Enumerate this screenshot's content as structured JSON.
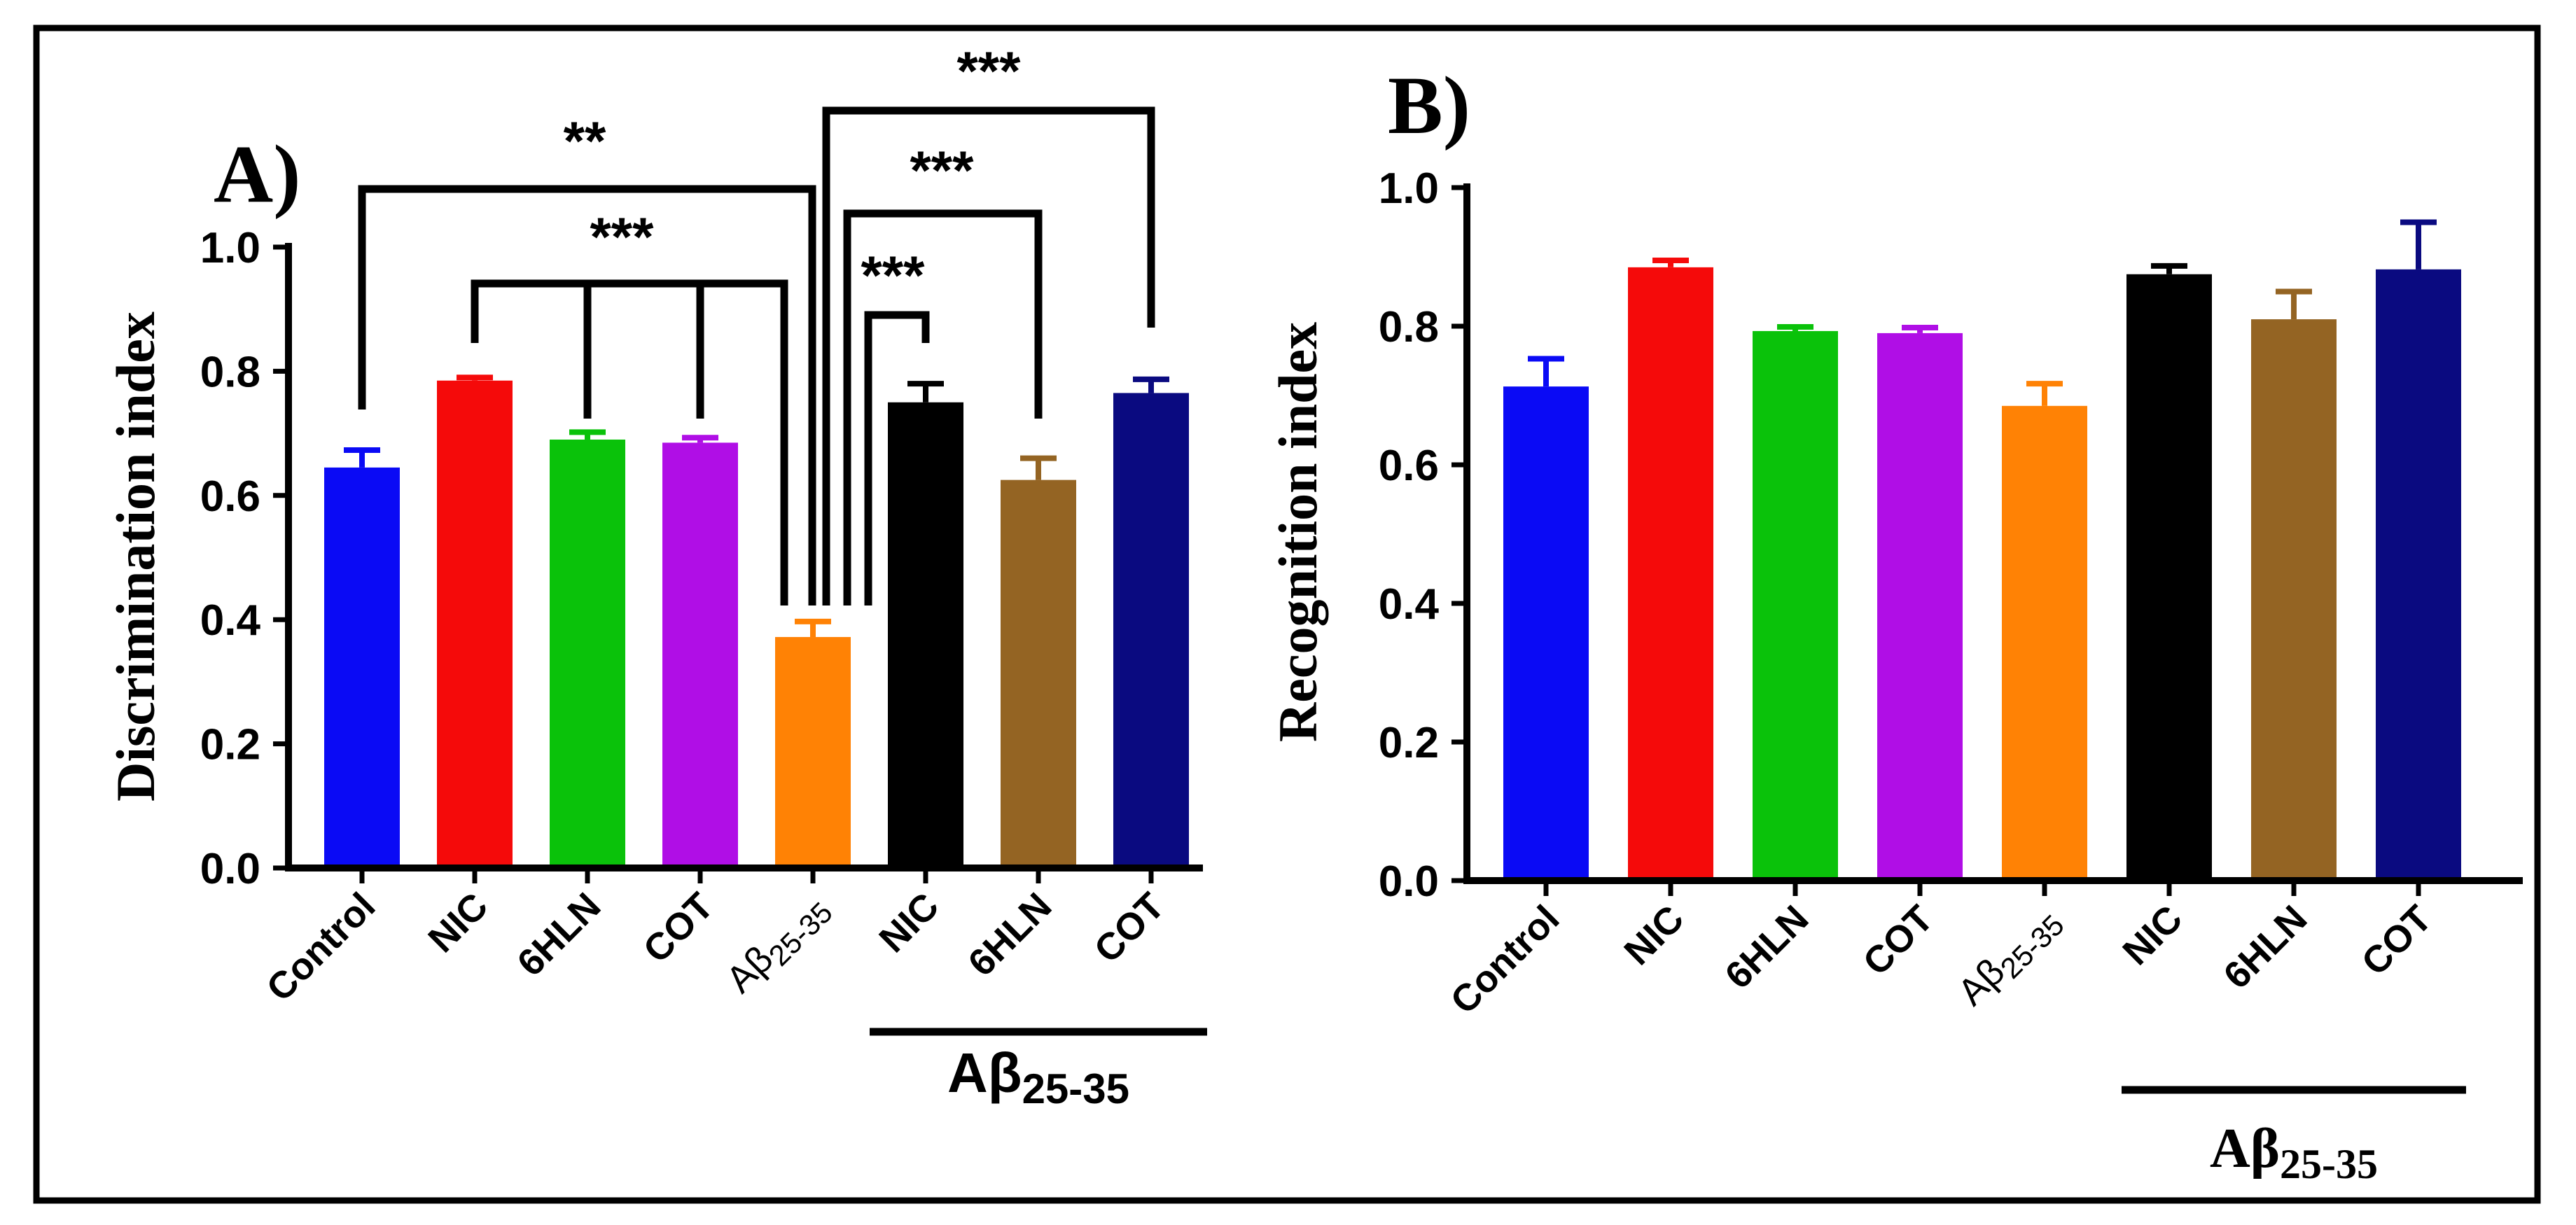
{
  "colors": {
    "Control": "#0a0af5",
    "NIC": "#f50a0a",
    "6HLN": "#0ac20a",
    "COT": "#b00ee6",
    "Abeta": "#ff8205",
    "Abeta_NIC": "#000000",
    "Abeta_6HLN": "#946423",
    "Abeta_COT": "#0a0a80",
    "axis": "#000000"
  },
  "chart_data": [
    {
      "panel": "A)",
      "type": "bar",
      "ylabel": "Discrimination index",
      "ylim": [
        0,
        1.0
      ],
      "yticks": [
        "0.0",
        "0.2",
        "0.4",
        "0.6",
        "0.8",
        "1.0"
      ],
      "categories": [
        "Control",
        "NIC",
        "6HLN",
        "COT",
        "Aβ",
        "NIC",
        "6HLN",
        "COT"
      ],
      "category_subscripts": [
        "",
        "",
        "",
        "",
        "25-35",
        "",
        "",
        ""
      ],
      "values": [
        0.645,
        0.785,
        0.69,
        0.685,
        0.372,
        0.75,
        0.625,
        0.765
      ],
      "errors": [
        0.028,
        0.005,
        0.012,
        0.008,
        0.025,
        0.03,
        0.035,
        0.022
      ],
      "color_keys": [
        "Control",
        "NIC",
        "6HLN",
        "COT",
        "Abeta",
        "Abeta_NIC",
        "Abeta_6HLN",
        "Abeta_COT"
      ],
      "group_label": "Aβ",
      "group_label_sub": "25-35",
      "group_span": [
        5,
        7
      ],
      "significance": [
        {
          "label": "**",
          "from": 0,
          "to": 4
        },
        {
          "label": "***",
          "from": 1,
          "to": 4,
          "drops": [
            2,
            3
          ]
        },
        {
          "label": "***",
          "from": 4,
          "to": 5
        },
        {
          "label": "***",
          "from": 4,
          "to": 6
        },
        {
          "label": "***",
          "from": 4,
          "to": 7
        }
      ]
    },
    {
      "panel": "B)",
      "type": "bar",
      "ylabel": "Recognition index",
      "ylim": [
        0,
        1.0
      ],
      "yticks": [
        "0.0",
        "0.2",
        "0.4",
        "0.6",
        "0.8",
        "1.0"
      ],
      "categories": [
        "Control",
        "NIC",
        "6HLN",
        "COT",
        "Aβ",
        "NIC",
        "6HLN",
        "COT"
      ],
      "category_subscripts": [
        "",
        "",
        "",
        "",
        "25-35",
        "",
        "",
        ""
      ],
      "values": [
        0.713,
        0.885,
        0.793,
        0.79,
        0.685,
        0.875,
        0.81,
        0.882
      ],
      "errors": [
        0.04,
        0.01,
        0.006,
        0.008,
        0.032,
        0.012,
        0.04,
        0.068
      ],
      "color_keys": [
        "Control",
        "NIC",
        "6HLN",
        "COT",
        "Abeta",
        "Abeta_NIC",
        "Abeta_6HLN",
        "Abeta_COT"
      ],
      "group_label": "Aβ",
      "group_label_sub": "25-35",
      "group_span": [
        5,
        7
      ]
    }
  ]
}
